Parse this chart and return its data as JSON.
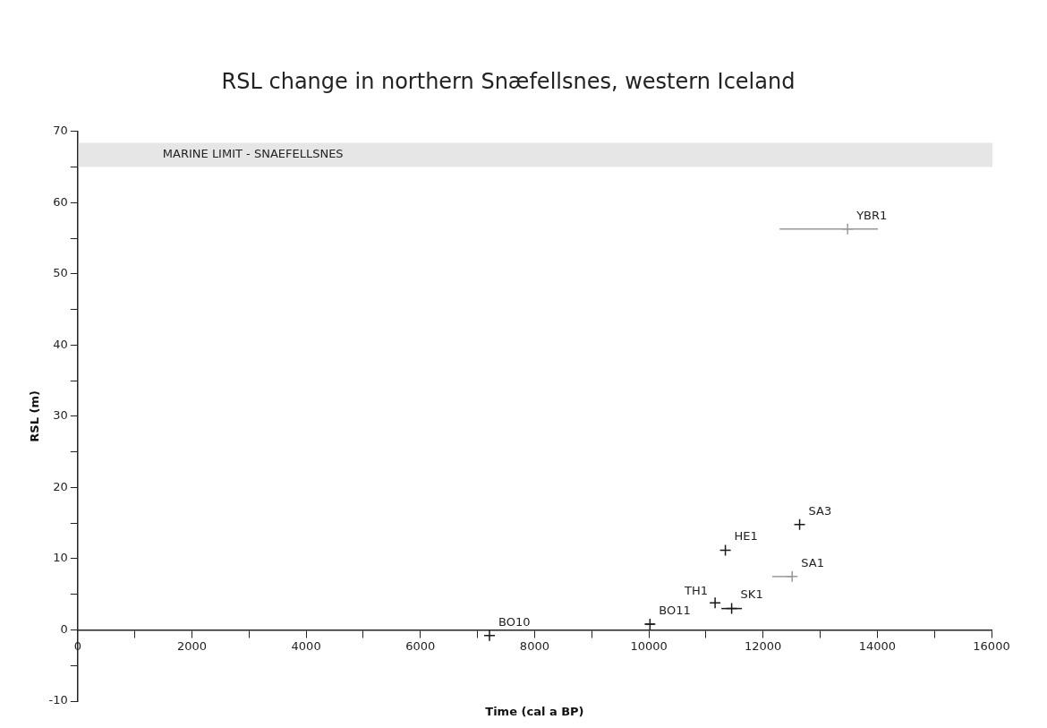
{
  "chart_data": {
    "type": "scatter",
    "title": "RSL change in northern Snæfellsnes, western Iceland",
    "xlabel": "Time (cal a BP)",
    "ylabel": "RSL (m)",
    "x": [
      7210,
      10020,
      11160,
      11450,
      11340,
      12510,
      12640,
      13480
    ],
    "values": [
      -0.8,
      0.8,
      3.8,
      3.0,
      11.2,
      7.5,
      14.8,
      56.3
    ],
    "xerrors": [
      null,
      80,
      null,
      180,
      null,
      [
        12160,
        12510
      ],
      null,
      [
        12290,
        14010
      ]
    ],
    "colors": [
      "#1a1a1a",
      "#1a1a1a",
      "#1a1a1a",
      "#1a1a1a",
      "#1a1a1a",
      "#999999",
      "#1a1a1a",
      "#999999"
    ],
    "marker": "cross",
    "grid": false,
    "legend": false,
    "xlim": [
      0,
      16000
    ],
    "ylim": [
      -10,
      70
    ],
    "xticks": [
      0,
      {
        "value": 1000,
        "label": null
      },
      2000,
      {
        "value": 3000,
        "label": null
      },
      4000,
      {
        "value": 5000,
        "label": null
      },
      6000,
      {
        "value": 7000,
        "label": null
      },
      8000,
      {
        "value": 9000,
        "label": null
      },
      10000,
      {
        "value": 11000,
        "label": null
      },
      12000,
      {
        "value": 13000,
        "label": null
      },
      14000,
      {
        "value": 15000,
        "label": null
      },
      16000
    ],
    "yticks": [
      -10,
      {
        "value": -5,
        "label": null
      },
      0,
      {
        "value": 5,
        "label": null
      },
      10,
      {
        "value": 15,
        "label": null
      },
      20,
      {
        "value": 25,
        "label": null
      },
      30,
      {
        "value": 35,
        "label": null
      },
      40,
      {
        "value": 45,
        "label": null
      },
      50,
      {
        "value": 55,
        "label": null
      },
      60,
      {
        "value": 65,
        "label": null
      },
      70
    ],
    "bands": [
      {
        "axis": "y",
        "from": 65,
        "to": 68.4,
        "label": "MARINE LIMIT - SNAEFELLSNES",
        "color": "#e6e6e6"
      }
    ],
    "annotations": [
      {
        "text": "BO10",
        "x": 7210,
        "y": -0.8
      },
      {
        "text": "BO11",
        "x": 10020,
        "y": 0.8
      },
      {
        "text": "TH1",
        "x": 11160,
        "y": 3.8
      },
      {
        "text": "SK1",
        "x": 11450,
        "y": 3.0
      },
      {
        "text": "HE1",
        "x": 11340,
        "y": 11.2
      },
      {
        "text": "SA1",
        "x": 12510,
        "y": 7.5
      },
      {
        "text": "SA3",
        "x": 12640,
        "y": 14.8
      },
      {
        "text": "YBR1",
        "x": 13480,
        "y": 56.3
      }
    ]
  }
}
